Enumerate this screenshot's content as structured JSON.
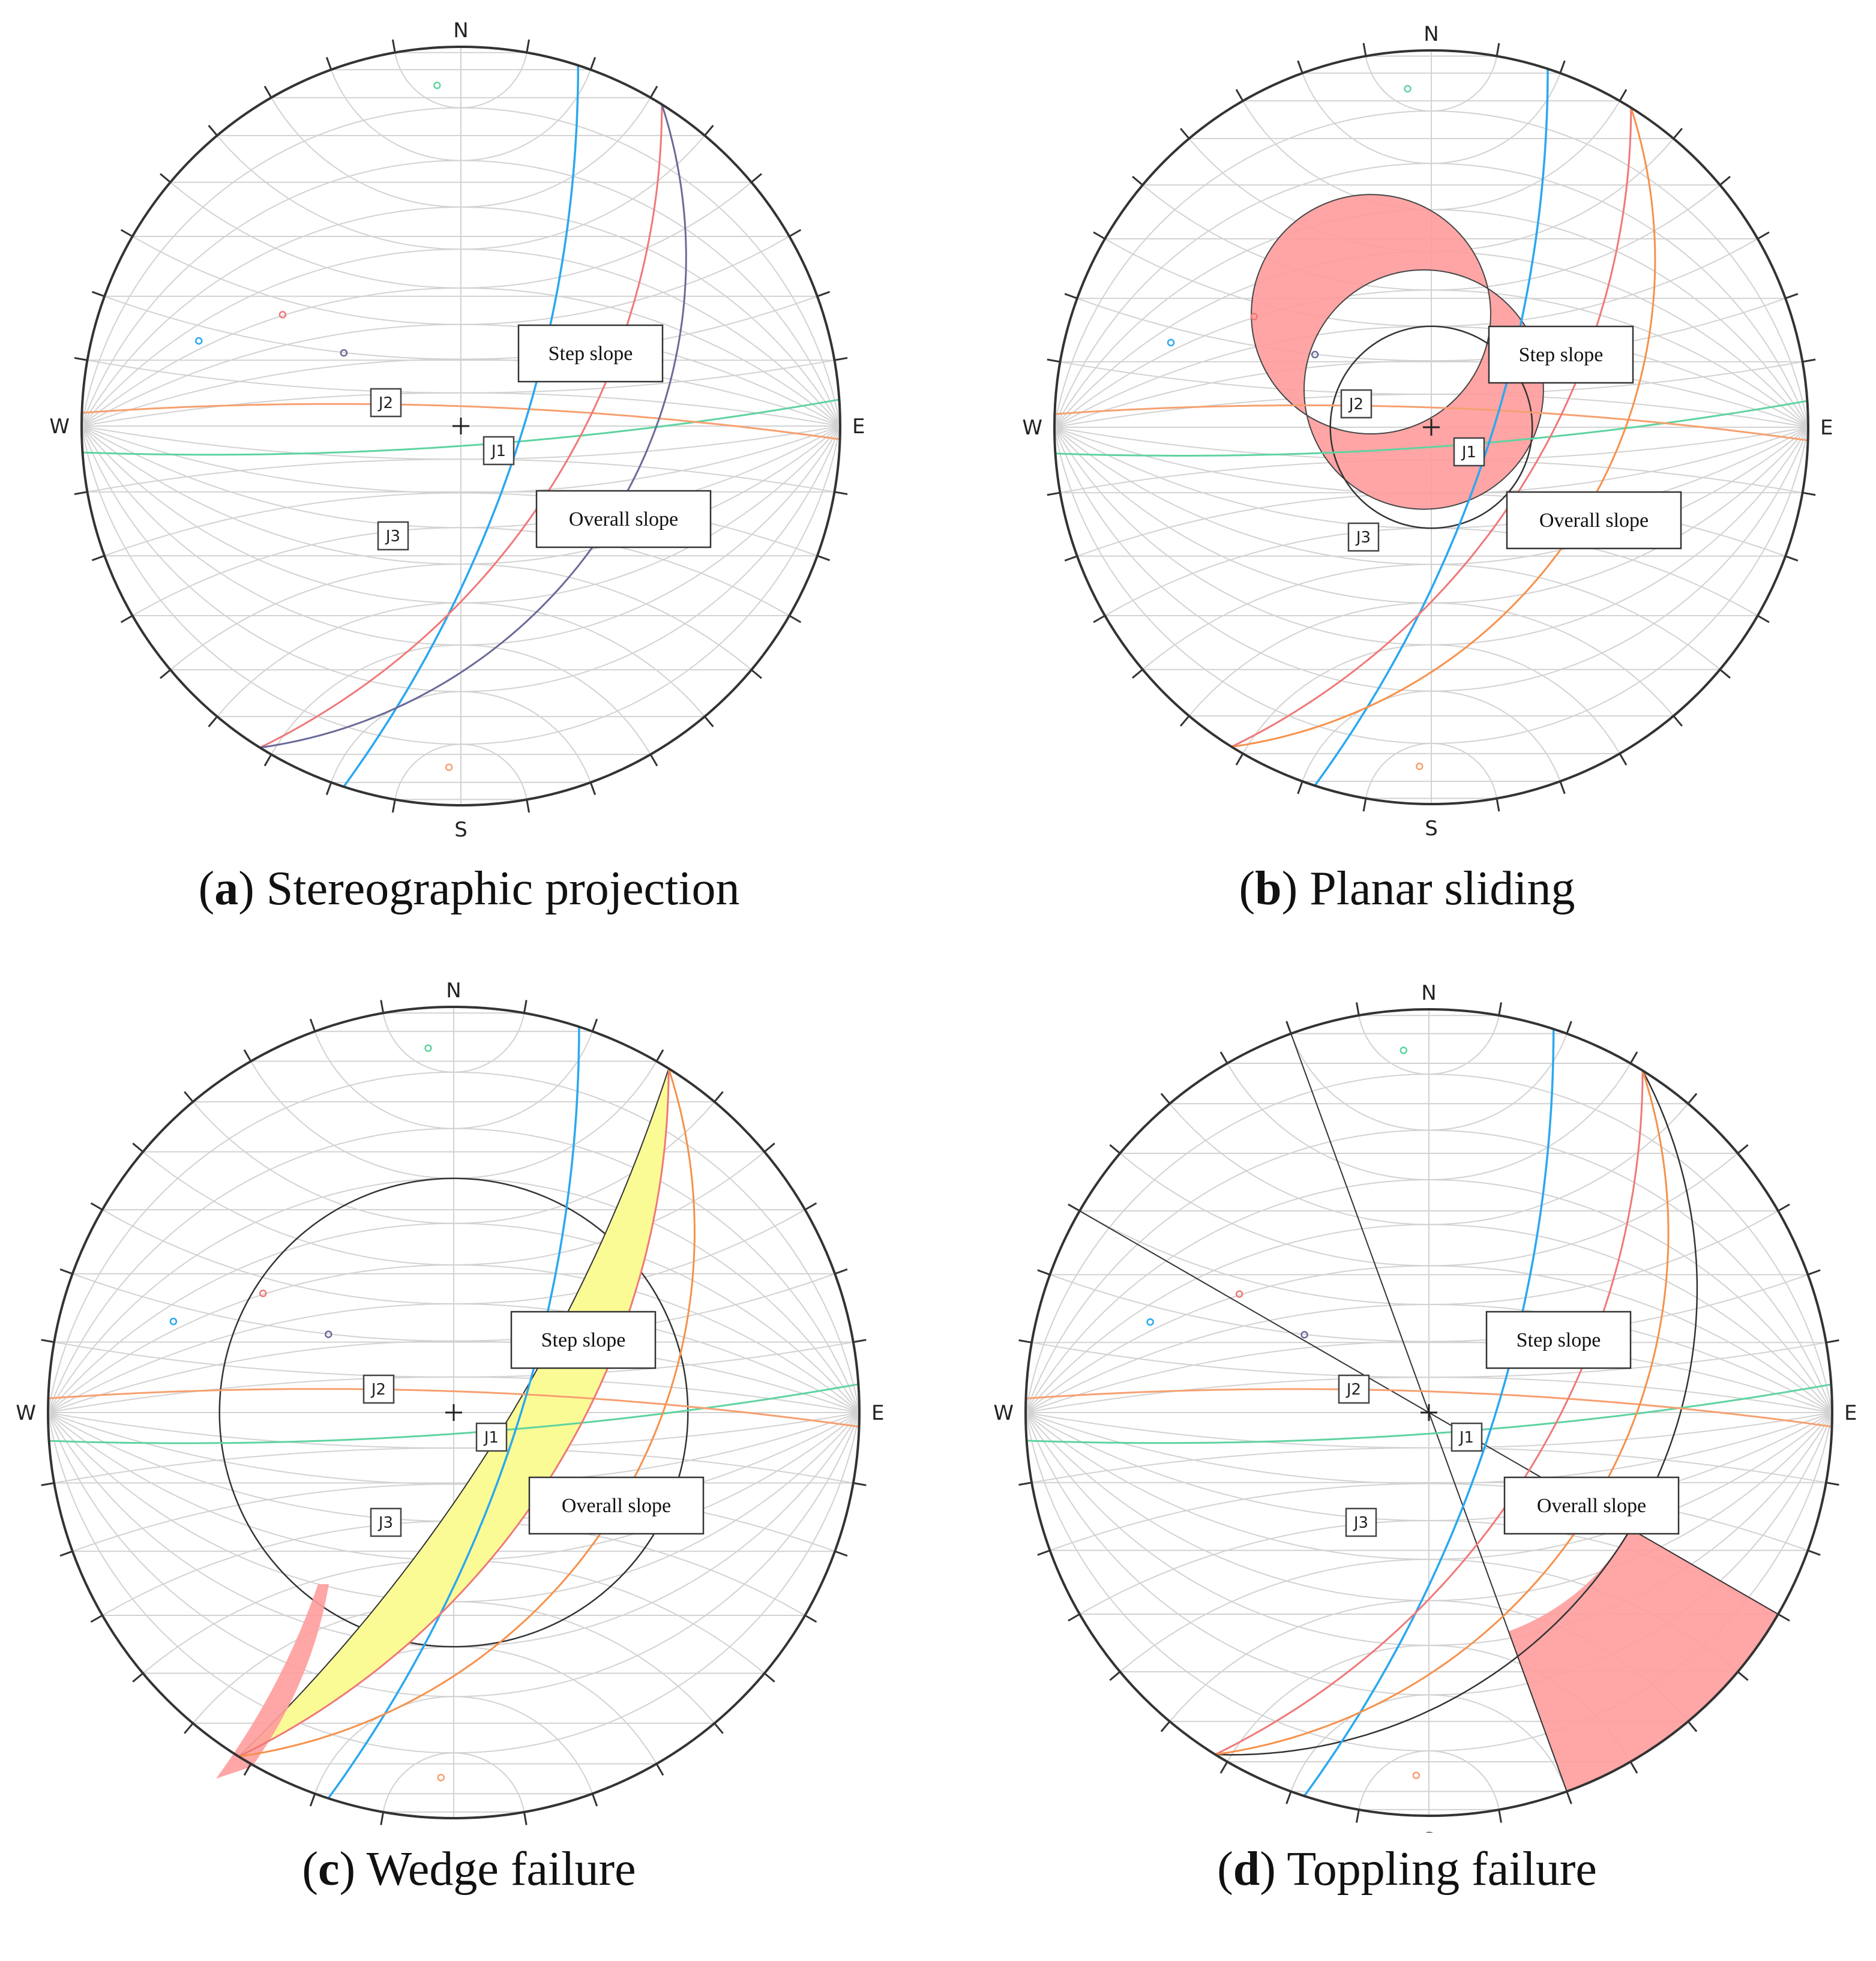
{
  "compass": {
    "north": "N",
    "south": "S",
    "east": "E",
    "west": "W"
  },
  "joint_labels": {
    "j1": "J1",
    "j2": "J2",
    "j3": "J3"
  },
  "slope_labels": {
    "step": "Step slope",
    "overall": "Overall slope"
  },
  "panels": [
    {
      "letter": "a",
      "title": "Stereographic projection"
    },
    {
      "letter": "b",
      "title": "Planar sliding"
    },
    {
      "letter": "c",
      "title": "Wedge failure"
    },
    {
      "letter": "d",
      "title": "Toppling failure"
    }
  ],
  "colors": {
    "j1_plane": "#5fd3a0",
    "j2_plane": "#f6a070",
    "j3_plane": "#2aa8f0",
    "step_slope": "#f07878",
    "overall_slope_a": "#6a6a98",
    "overall_slope_bcd": "#f6914a",
    "critical_zone": "#ff9c9c",
    "wedge_zone": "#fbfb96",
    "outline": "#333333",
    "grid": "#d2d2d2"
  }
}
